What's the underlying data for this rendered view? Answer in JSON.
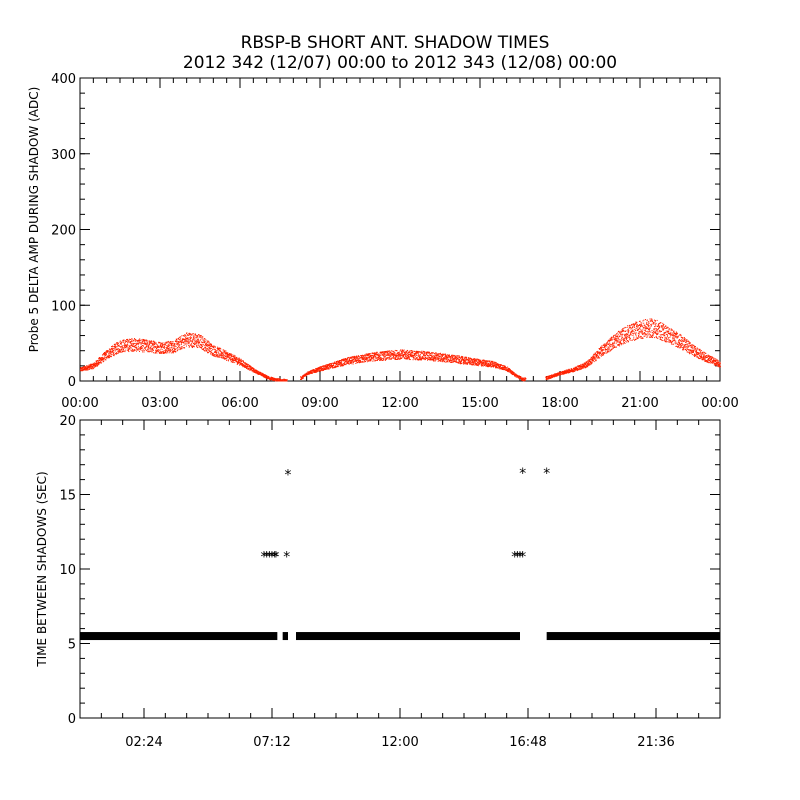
{
  "title": {
    "line1": "RBSP-B SHORT ANT. SHADOW TIMES",
    "line2": "2012 342 (12/07) 00:00 to 2012 343 (12/08) 00:00"
  },
  "colors": {
    "amp_points": "#ff2200",
    "interval_points": "#000000",
    "axes": "#000000",
    "background": "#ffffff"
  },
  "chart_data": [
    {
      "type": "scatter",
      "panel": "top",
      "xlabel": "",
      "ylabel": "Probe 5 DELTA AMP DURING SHADOW (ADC)",
      "xlim": [
        "00:00",
        "24:00"
      ],
      "ylim": [
        0,
        400
      ],
      "xticks": [
        "00:00",
        "03:00",
        "06:00",
        "09:00",
        "12:00",
        "15:00",
        "18:00",
        "21:00",
        "00:00"
      ],
      "yticks": [
        0,
        100,
        200,
        300,
        400
      ],
      "series": [
        {
          "color": "#ff2200",
          "description_points_hour_value": [
            [
              0.0,
              15
            ],
            [
              0.5,
              20
            ],
            [
              1.0,
              35
            ],
            [
              1.5,
              46
            ],
            [
              2.0,
              48
            ],
            [
              2.5,
              46
            ],
            [
              3.0,
              44
            ],
            [
              3.5,
              45
            ],
            [
              4.0,
              55
            ],
            [
              4.5,
              52
            ],
            [
              5.0,
              40
            ],
            [
              5.5,
              33
            ],
            [
              6.0,
              25
            ],
            [
              6.5,
              14
            ],
            [
              7.0,
              5
            ],
            [
              7.25,
              2
            ],
            [
              7.7,
              0
            ],
            [
              8.3,
              4
            ],
            [
              8.5,
              10
            ],
            [
              9.0,
              16
            ],
            [
              10.0,
              26
            ],
            [
              11.0,
              32
            ],
            [
              12.0,
              35
            ],
            [
              13.0,
              33
            ],
            [
              14.0,
              29
            ],
            [
              15.0,
              24
            ],
            [
              15.5,
              22
            ],
            [
              16.0,
              16
            ],
            [
              16.3,
              8
            ],
            [
              16.6,
              2
            ],
            [
              17.5,
              4
            ],
            [
              18.0,
              10
            ],
            [
              18.5,
              15
            ],
            [
              19.0,
              22
            ],
            [
              19.5,
              38
            ],
            [
              20.0,
              52
            ],
            [
              20.5,
              62
            ],
            [
              21.0,
              68
            ],
            [
              21.5,
              70
            ],
            [
              22.0,
              62
            ],
            [
              22.5,
              52
            ],
            [
              23.0,
              40
            ],
            [
              23.5,
              30
            ],
            [
              24.0,
              22
            ]
          ]
        }
      ]
    },
    {
      "type": "scatter",
      "panel": "bottom",
      "xlabel": "",
      "ylabel": "TIME BETWEEN SHADOWS (SEC)",
      "xlim": [
        "00:00",
        "24:00"
      ],
      "ylim": [
        0,
        20
      ],
      "xticks": [
        "02:24",
        "07:12",
        "12:00",
        "16:48",
        "21:36"
      ],
      "yticks": [
        0,
        5,
        10,
        15,
        20
      ],
      "marker": "*",
      "series": [
        {
          "color": "#000000",
          "baseline": {
            "value": 5.5,
            "segments_hours": [
              [
                0.0,
                7.4
              ],
              [
                7.6,
                7.8
              ],
              [
                8.1,
                16.5
              ],
              [
                17.5,
                24.0
              ]
            ]
          },
          "points_hour_value": [
            [
              6.9,
              10.9
            ],
            [
              7.0,
              10.9
            ],
            [
              7.1,
              10.9
            ],
            [
              7.2,
              10.9
            ],
            [
              7.3,
              10.9
            ],
            [
              7.35,
              10.9
            ],
            [
              7.75,
              10.9
            ],
            [
              7.8,
              16.4
            ],
            [
              16.3,
              10.9
            ],
            [
              16.4,
              10.9
            ],
            [
              16.5,
              10.9
            ],
            [
              16.6,
              10.9
            ],
            [
              16.6,
              16.5
            ],
            [
              17.5,
              16.5
            ]
          ]
        }
      ]
    }
  ]
}
